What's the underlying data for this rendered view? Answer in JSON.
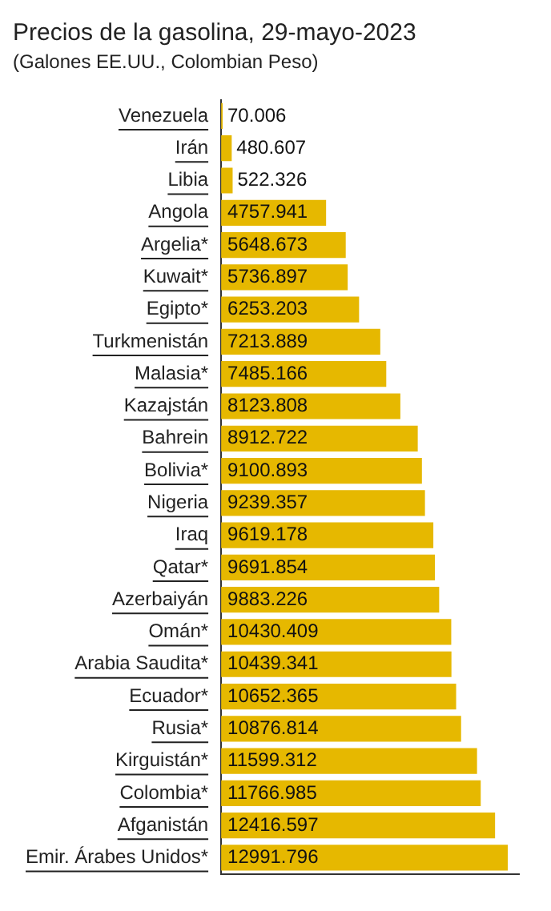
{
  "chart_data": {
    "type": "bar",
    "orientation": "horizontal",
    "title": "Precios de la gasolina, 29-mayo-2023",
    "subtitle": "(Galones EE.UU., Colombian Peso)",
    "categories": [
      "Venezuela",
      "Irán",
      "Libia",
      "Angola",
      "Argelia*",
      "Kuwait*",
      "Egipto*",
      "Turkmenistán",
      "Malasia*",
      "Kazajstán",
      "Bahrein",
      "Bolivia*",
      "Nigeria",
      "Iraq",
      "Qatar*",
      "Azerbaiyán",
      "Omán*",
      "Arabia Saudita*",
      "Ecuador*",
      "Rusia*",
      "Kirguistán*",
      "Colombia*",
      "Afganistán",
      "Emir. Árabes Unidos*"
    ],
    "values": [
      70.006,
      480.607,
      522.326,
      4757.941,
      5648.673,
      5736.897,
      6253.203,
      7213.889,
      7485.166,
      8123.808,
      8912.722,
      9100.893,
      9239.357,
      9619.178,
      9691.854,
      9883.226,
      10430.409,
      10439.341,
      10652.365,
      10876.814,
      11599.312,
      11766.985,
      12416.597,
      12991.796
    ],
    "color": "#e6b800",
    "xlim": [
      0,
      13500
    ],
    "tick_labels": "y",
    "data_labels": true,
    "grid": false,
    "legend": false
  }
}
